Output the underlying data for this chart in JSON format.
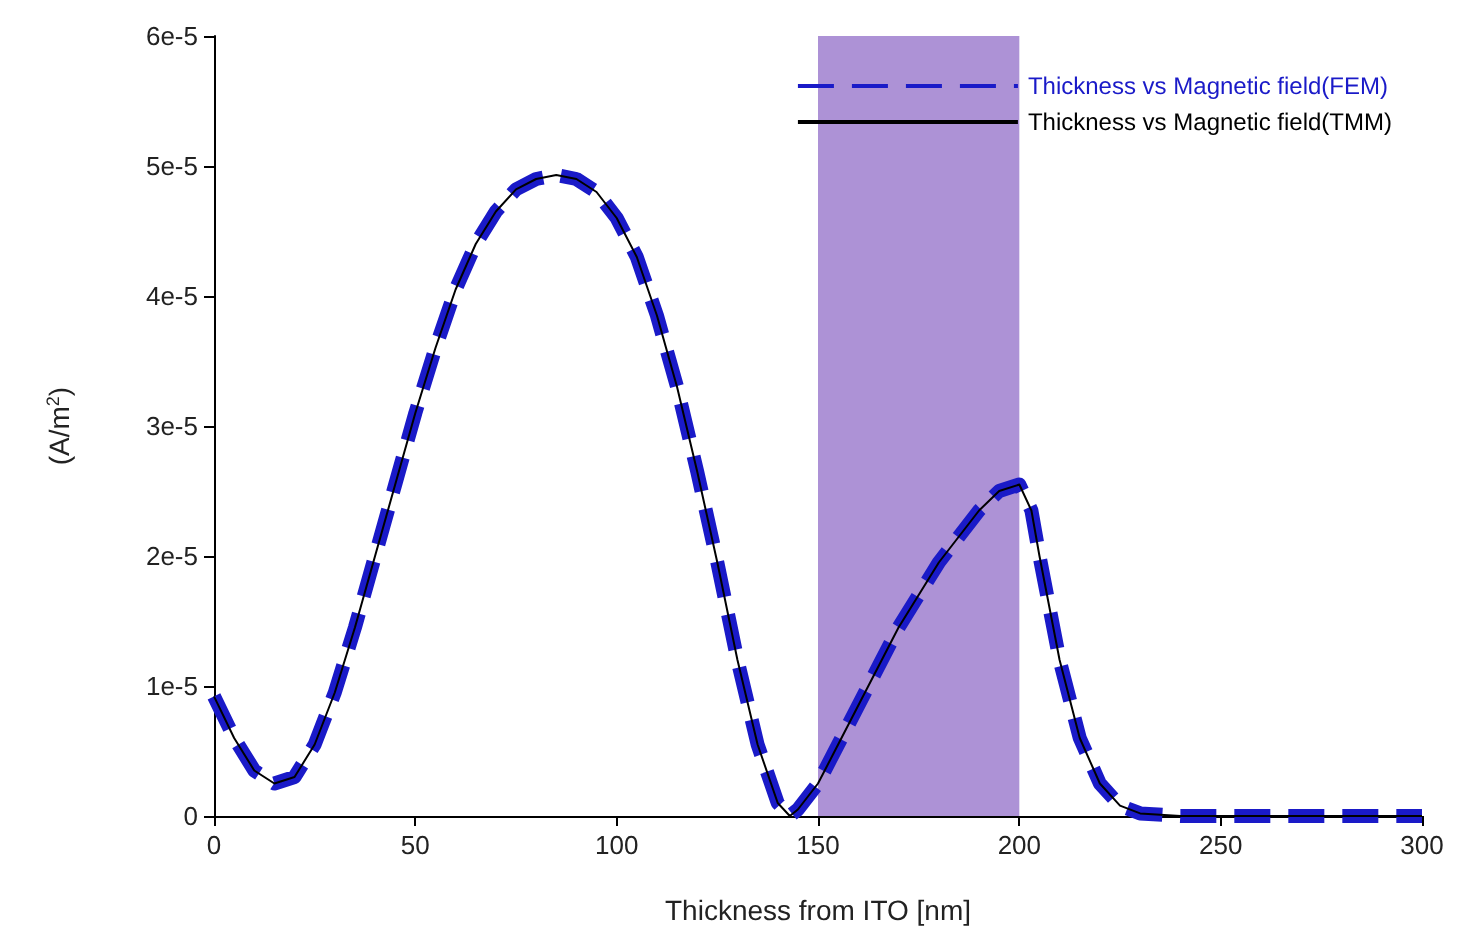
{
  "chart_data": {
    "type": "line",
    "xlabel": "Thickness from ITO [nm]",
    "ylabel": "(A/m$^{2}$)",
    "x": [
      0,
      5,
      10,
      15,
      20,
      25,
      30,
      35,
      40,
      45,
      50,
      55,
      60,
      65,
      70,
      75,
      80,
      85,
      90,
      95,
      100,
      105,
      110,
      115,
      120,
      125,
      130,
      135,
      140,
      143,
      145,
      150,
      155,
      160,
      165,
      170,
      175,
      180,
      185,
      190,
      195,
      200,
      203,
      205,
      210,
      215,
      220,
      225,
      230,
      240,
      250,
      260,
      270,
      280,
      290,
      300
    ],
    "series": [
      {
        "name": "Thickness vs Magnetic field(FEM)",
        "color": "#1a1ac8",
        "line_style": "dashed",
        "values": [
          9.2e-06,
          6e-06,
          3.5e-06,
          2.5e-06,
          3e-06,
          5.5e-06,
          9.5e-06,
          1.45e-05,
          2e-05,
          2.55e-05,
          3.1e-05,
          3.6e-05,
          4.05e-05,
          4.4e-05,
          4.65e-05,
          4.82e-05,
          4.9e-05,
          4.93e-05,
          4.9e-05,
          4.8e-05,
          4.6e-05,
          4.3e-05,
          3.85e-05,
          3.3e-05,
          2.65e-05,
          1.95e-05,
          1.2e-05,
          5.5e-06,
          1e-06,
          0,
          5e-07,
          2.5e-06,
          5.5e-06,
          8.5e-06,
          1.15e-05,
          1.45e-05,
          1.7e-05,
          1.95e-05,
          2.15e-05,
          2.35e-05,
          2.5e-05,
          2.55e-05,
          2.35e-05,
          2e-05,
          1.2e-05,
          6e-06,
          2.5e-06,
          8e-07,
          2e-07,
          0,
          0,
          0,
          0,
          0,
          0,
          0
        ]
      },
      {
        "name": "Thickness vs Magnetic field(TMM)",
        "color": "#000000",
        "line_style": "solid",
        "values": [
          9.2e-06,
          6e-06,
          3.5e-06,
          2.5e-06,
          3e-06,
          5.5e-06,
          9.5e-06,
          1.45e-05,
          2e-05,
          2.55e-05,
          3.1e-05,
          3.6e-05,
          4.05e-05,
          4.4e-05,
          4.65e-05,
          4.82e-05,
          4.9e-05,
          4.93e-05,
          4.9e-05,
          4.8e-05,
          4.6e-05,
          4.3e-05,
          3.85e-05,
          3.3e-05,
          2.65e-05,
          1.95e-05,
          1.2e-05,
          5.5e-06,
          1e-06,
          0,
          5e-07,
          2.5e-06,
          5.5e-06,
          8.5e-06,
          1.15e-05,
          1.45e-05,
          1.7e-05,
          1.95e-05,
          2.15e-05,
          2.35e-05,
          2.5e-05,
          2.55e-05,
          2.35e-05,
          2e-05,
          1.2e-05,
          6e-06,
          2.5e-06,
          8e-07,
          2e-07,
          0,
          0,
          0,
          0,
          0,
          0,
          0
        ]
      }
    ],
    "xlim": [
      0,
      300
    ],
    "xticks": [
      0,
      50,
      100,
      150,
      200,
      250,
      300
    ],
    "ylim": [
      0,
      6e-05
    ],
    "yticks": [
      {
        "value": 0,
        "label": "0"
      },
      {
        "value": 1e-05,
        "label": "1e-5"
      },
      {
        "value": 2e-05,
        "label": "2e-5"
      },
      {
        "value": 3e-05,
        "label": "3e-5"
      },
      {
        "value": 4e-05,
        "label": "4e-5"
      },
      {
        "value": 5e-05,
        "label": "5e-5"
      },
      {
        "value": 6e-05,
        "label": "6e-5"
      }
    ],
    "bands": [
      {
        "axis": "x",
        "from": 150,
        "to": 200,
        "color": "#9f7fcf"
      }
    ],
    "grid": false,
    "legend": "top right",
    "marker": "none"
  }
}
